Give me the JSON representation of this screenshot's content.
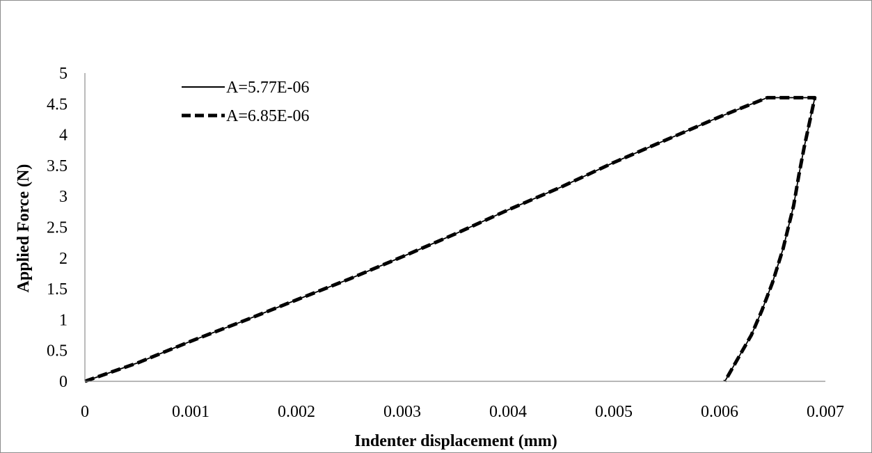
{
  "chart_data": {
    "type": "line",
    "title": "",
    "xlabel": "Indenter displacement (mm)",
    "ylabel": "Applied Force (N)",
    "xlim": [
      0,
      0.007
    ],
    "ylim": [
      0,
      5
    ],
    "xticks": [
      "0",
      "0.001",
      "0.002",
      "0.003",
      "0.004",
      "0.005",
      "0.006",
      "0.007"
    ],
    "yticks": [
      "0",
      "0.5",
      "1",
      "1.5",
      "2",
      "2.5",
      "3",
      "3.5",
      "4",
      "4.5",
      "5"
    ],
    "grid": false,
    "legend_position": "top-left",
    "series": [
      {
        "name": "A=5.77E-06",
        "style": "solid",
        "color": "#000000",
        "x": [
          0,
          0.0005,
          0.001,
          0.0015,
          0.002,
          0.0025,
          0.003,
          0.0035,
          0.004,
          0.0045,
          0.005,
          0.0055,
          0.006,
          0.00645,
          0.0069,
          0.00685,
          0.0068,
          0.00675,
          0.0067,
          0.0066,
          0.0065,
          0.0064,
          0.0063,
          0.0062,
          0.0061,
          0.00605
        ],
        "y": [
          0,
          0.3,
          0.65,
          0.98,
          1.32,
          1.66,
          2.02,
          2.39,
          2.78,
          3.15,
          3.55,
          3.92,
          4.29,
          4.6,
          4.6,
          4.2,
          3.8,
          3.35,
          2.85,
          2.15,
          1.6,
          1.15,
          0.75,
          0.45,
          0.15,
          0
        ]
      },
      {
        "name": "A=6.85E-06",
        "style": "dashed",
        "color": "#000000",
        "x": [
          0,
          0.0005,
          0.001,
          0.0015,
          0.002,
          0.0025,
          0.003,
          0.0035,
          0.004,
          0.0045,
          0.005,
          0.0055,
          0.006,
          0.00645,
          0.0069,
          0.00685,
          0.0068,
          0.00675,
          0.0067,
          0.0066,
          0.0065,
          0.0064,
          0.0063,
          0.0062,
          0.0061,
          0.00605
        ],
        "y": [
          0,
          0.3,
          0.65,
          0.98,
          1.32,
          1.66,
          2.02,
          2.39,
          2.78,
          3.15,
          3.55,
          3.92,
          4.29,
          4.6,
          4.6,
          4.2,
          3.8,
          3.35,
          2.85,
          2.15,
          1.6,
          1.15,
          0.75,
          0.45,
          0.15,
          0
        ]
      }
    ]
  }
}
